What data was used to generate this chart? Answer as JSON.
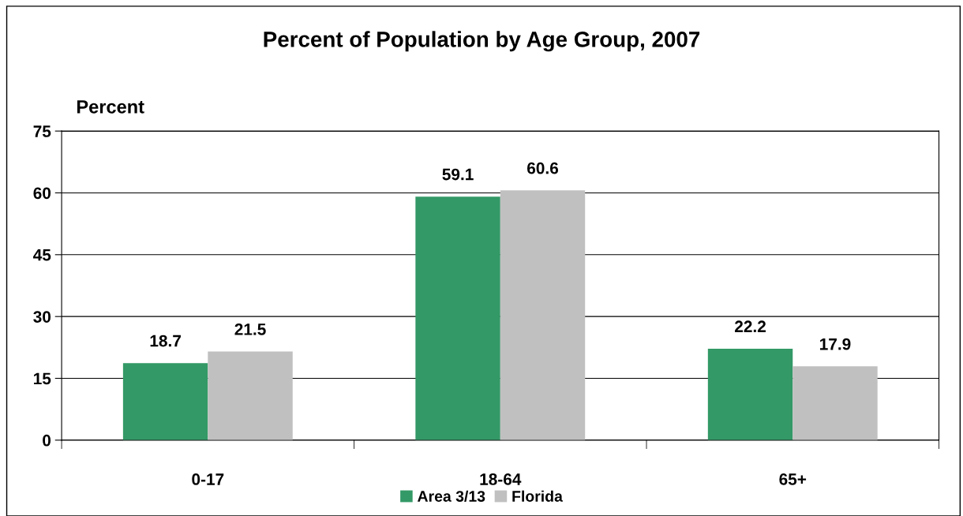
{
  "chart_data": {
    "type": "bar",
    "title": "Percent of Population by Age Group, 2007",
    "ylabel": "Percent",
    "categories": [
      "0-17",
      "18-64",
      "65+"
    ],
    "series": [
      {
        "name": "Area 3/13",
        "color": "#339966",
        "values": [
          18.7,
          59.1,
          22.2
        ]
      },
      {
        "name": "Florida",
        "color": "#c0c0c0",
        "values": [
          21.5,
          60.6,
          17.9
        ]
      }
    ],
    "ylim": [
      0,
      75
    ],
    "yticks": [
      0,
      15,
      30,
      45,
      60,
      75
    ],
    "grid": "y",
    "legend": "bottom",
    "data_labels": true
  }
}
